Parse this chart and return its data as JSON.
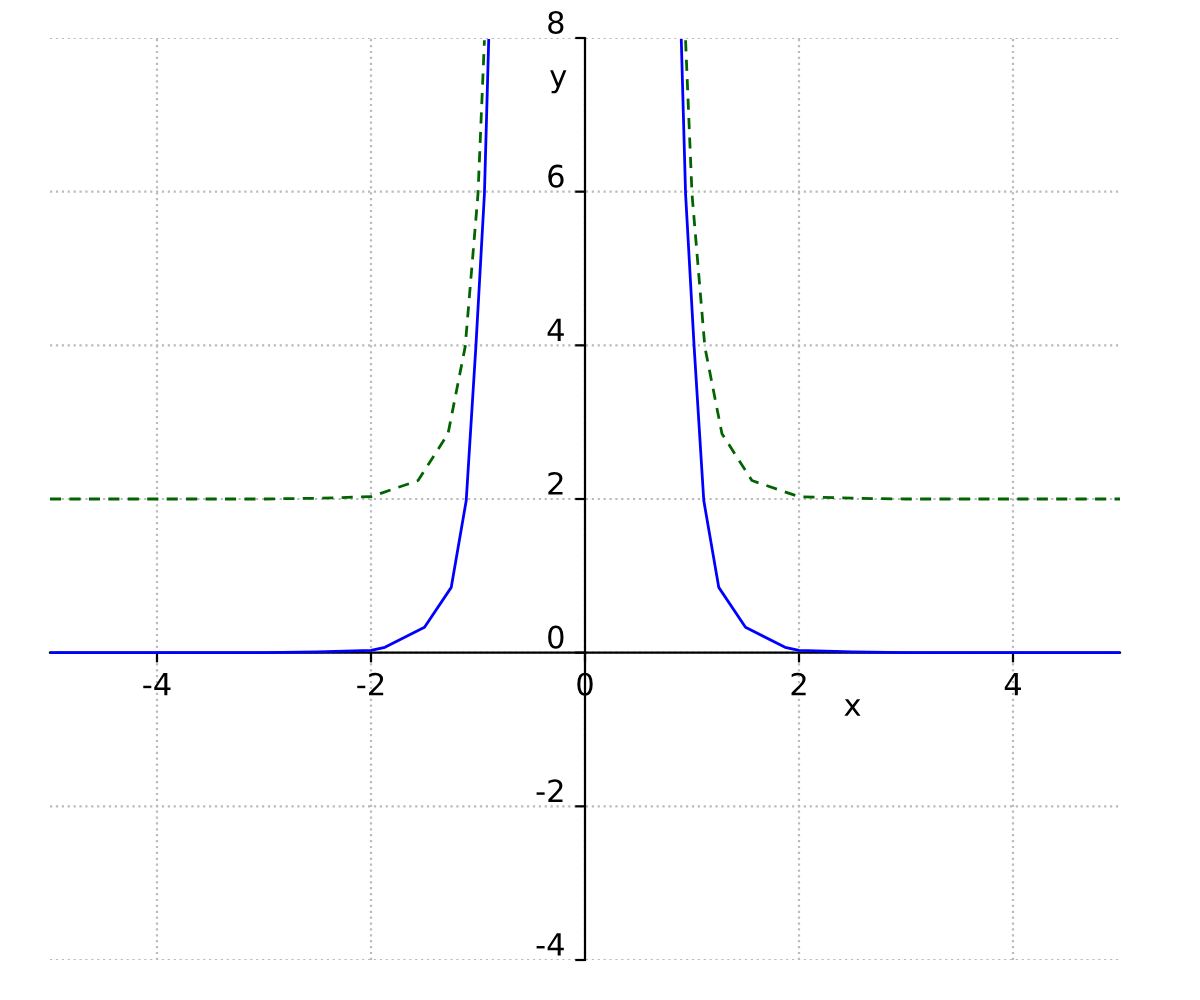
{
  "chart_data": {
    "type": "line",
    "xlabel": "x",
    "ylabel": "y",
    "xlim": [
      -5,
      5
    ],
    "ylim": [
      -4,
      8
    ],
    "xticks": [
      -4,
      -2,
      0,
      2,
      4
    ],
    "yticks": [
      -4,
      -2,
      0,
      2,
      4,
      6,
      8
    ],
    "grid": true,
    "marker": "none",
    "series": [
      {
        "color": "#0000ff",
        "line_style": "solid",
        "x": [
          -5,
          -4,
          -3,
          -2.5,
          -2,
          -1.87,
          -1.5,
          -1.25,
          -1.11,
          -1.02,
          -0.94,
          -0.9,
          0,
          0.9,
          0.94,
          1.02,
          1.11,
          1.25,
          1.5,
          1.87,
          2,
          2.5,
          3,
          4,
          5
        ],
        "values": [
          0,
          0,
          0,
          0.01,
          0.03,
          0.07,
          0.33,
          0.85,
          1.98,
          3.98,
          5.97,
          7.97,
          null,
          7.97,
          5.97,
          3.98,
          1.98,
          0.85,
          0.33,
          0.07,
          0.03,
          0.01,
          0,
          0,
          0
        ]
      },
      {
        "color": "#006400",
        "line_style": "dashed",
        "x": [
          -5,
          -4,
          -3,
          -2.5,
          -2,
          -1.56,
          -1.28,
          -1.12,
          -1.0,
          -0.94,
          0,
          0.94,
          1.0,
          1.12,
          1.28,
          1.56,
          2,
          2.5,
          3,
          4,
          5
        ],
        "values": [
          2,
          2,
          2,
          2.01,
          2.03,
          2.24,
          2.85,
          3.98,
          5.97,
          7.97,
          null,
          7.97,
          5.97,
          3.98,
          2.85,
          2.24,
          2.03,
          2.01,
          2,
          2,
          2
        ]
      }
    ]
  }
}
